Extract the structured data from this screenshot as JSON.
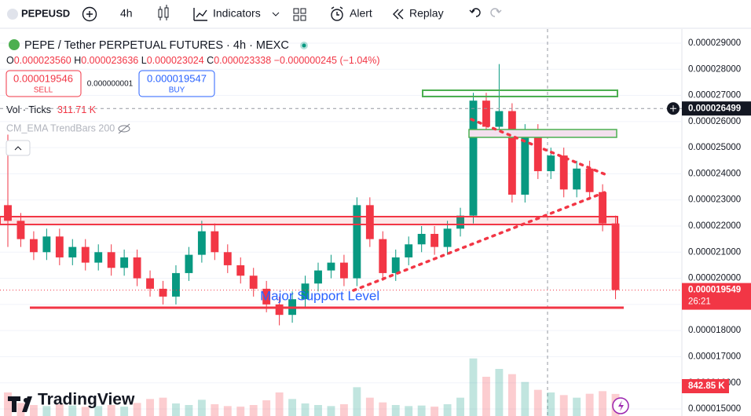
{
  "toolbar": {
    "symbol": "PEPEUSD",
    "interval": "4h",
    "indicators": "Indicators",
    "alert": "Alert",
    "replay": "Replay"
  },
  "legend": {
    "title": "PEPE / Tether PERPETUAL FUTURES · 4h · MEXC",
    "o_key": "O",
    "o": "0.000023560",
    "h_key": "H",
    "h": "0.000023636",
    "l_key": "L",
    "l": "0.000023024",
    "c_key": "C",
    "c": "0.000023338",
    "change": "−0.000000245 (−1.04%)"
  },
  "trade": {
    "sell_price": "0.000019546",
    "sell": "SELL",
    "spread": "0.000000001",
    "buy_price": "0.000019547",
    "buy": "BUY"
  },
  "volume_legend": {
    "label": "Vol · Ticks",
    "value": "311.71 K"
  },
  "indicator": "CM_EMA TrendBars 200",
  "brand": "TradingView",
  "chart_data": {
    "type": "candlestick",
    "ylim": [
      1.473e-05,
      2.945e-05
    ],
    "yticks": [
      {
        "value": 1.5e-05,
        "label": "0.000015000"
      },
      {
        "value": 1.6e-05,
        "label": "0.000016000"
      },
      {
        "value": 1.7e-05,
        "label": "0.000017000"
      },
      {
        "value": 1.8e-05,
        "label": "0.000018000"
      },
      {
        "value": 1.9e-05,
        "label": "0.000019000"
      },
      {
        "value": 2e-05,
        "label": "0.000020000"
      },
      {
        "value": 2.1e-05,
        "label": "0.000021000"
      },
      {
        "value": 2.2e-05,
        "label": "0.000022000"
      },
      {
        "value": 2.3e-05,
        "label": "0.000023000"
      },
      {
        "value": 2.4e-05,
        "label": "0.000024000"
      },
      {
        "value": 2.5e-05,
        "label": "0.000025000"
      },
      {
        "value": 2.6e-05,
        "label": "0.000026000"
      },
      {
        "value": 2.7e-05,
        "label": "0.000027000"
      },
      {
        "value": 2.8e-05,
        "label": "0.000028000"
      },
      {
        "value": 2.9e-05,
        "label": "0.000029000"
      }
    ],
    "up_color": "#089981",
    "down_color": "#f23645",
    "open": [
      2.28e-05,
      2.22e-05,
      2.15e-05,
      2.1e-05,
      2.16e-05,
      2.08e-05,
      2.12e-05,
      2.06e-05,
      2.1e-05,
      2.04e-05,
      2.08e-05,
      2e-05,
      1.96e-05,
      1.93e-05,
      2.02e-05,
      2.09e-05,
      2.18e-05,
      2.1e-05,
      2.05e-05,
      2.01e-05,
      1.96e-05,
      1.9e-05,
      1.86e-05,
      1.92e-05,
      1.98e-05,
      2.03e-05,
      2.06e-05,
      2e-05,
      2.28e-05,
      2.15e-05,
      2.02e-05,
      2.08e-05,
      2.13e-05,
      2.17e-05,
      2.12e-05,
      2.19e-05,
      2.24e-05,
      2.68e-05,
      2.58e-05,
      2.64e-05,
      2.32e-05,
      2.56e-05,
      2.41e-05,
      2.47e-05,
      2.34e-05,
      2.42e-05,
      2.33e-05,
      2.21e-05
    ],
    "high": [
      2.55e-05,
      2.25e-05,
      2.18e-05,
      2.19e-05,
      2.19e-05,
      2.15e-05,
      2.15e-05,
      2.13e-05,
      2.13e-05,
      2.11e-05,
      2.11e-05,
      2.03e-05,
      1.99e-05,
      2.05e-05,
      2.12e-05,
      2.22e-05,
      2.21e-05,
      2.13e-05,
      2.08e-05,
      2.04e-05,
      1.99e-05,
      1.93e-05,
      1.95e-05,
      2.01e-05,
      2.06e-05,
      2.09e-05,
      2.09e-05,
      2.31e-05,
      2.31e-05,
      2.18e-05,
      2.11e-05,
      2.16e-05,
      2.2e-05,
      2.2e-05,
      2.22e-05,
      2.27e-05,
      2.71e-05,
      2.71e-05,
      2.82e-05,
      2.67e-05,
      2.59e-05,
      2.59e-05,
      2.5e-05,
      2.5e-05,
      2.45e-05,
      2.45e-05,
      2.36e-05,
      2.24e-05
    ],
    "low": [
      2.12e-05,
      2.12e-05,
      2.07e-05,
      2.07e-05,
      2.05e-05,
      2.05e-05,
      2.03e-05,
      2.03e-05,
      2.01e-05,
      2.01e-05,
      1.97e-05,
      1.93e-05,
      1.9e-05,
      1.9e-05,
      1.99e-05,
      2.06e-05,
      2.07e-05,
      2.02e-05,
      1.98e-05,
      1.93e-05,
      1.87e-05,
      1.82e-05,
      1.83e-05,
      1.89e-05,
      1.95e-05,
      2e-05,
      1.97e-05,
      1.97e-05,
      2.12e-05,
      1.99e-05,
      1.99e-05,
      2.05e-05,
      2.1e-05,
      2.09e-05,
      2.09e-05,
      2.16e-05,
      2.21e-05,
      2.55e-05,
      2.55e-05,
      2.29e-05,
      2.29e-05,
      2.38e-05,
      2.38e-05,
      2.31e-05,
      2.31e-05,
      2.3e-05,
      2.18e-05,
      1.92e-05
    ],
    "close": [
      2.22e-05,
      2.15e-05,
      2.1e-05,
      2.16e-05,
      2.08e-05,
      2.12e-05,
      2.06e-05,
      2.1e-05,
      2.04e-05,
      2.08e-05,
      2e-05,
      1.96e-05,
      1.93e-05,
      2.02e-05,
      2.09e-05,
      2.18e-05,
      2.1e-05,
      2.05e-05,
      2.01e-05,
      1.96e-05,
      1.9e-05,
      1.86e-05,
      1.92e-05,
      1.98e-05,
      2.03e-05,
      2.06e-05,
      2e-05,
      2.28e-05,
      2.15e-05,
      2.02e-05,
      2.08e-05,
      2.13e-05,
      2.17e-05,
      2.12e-05,
      2.19e-05,
      2.24e-05,
      2.68e-05,
      2.58e-05,
      2.64e-05,
      2.32e-05,
      2.56e-05,
      2.41e-05,
      2.47e-05,
      2.34e-05,
      2.42e-05,
      2.33e-05,
      2.21e-05,
      1.955e-05
    ],
    "volume": [
      900,
      500,
      420,
      380,
      450,
      400,
      350,
      380,
      420,
      360,
      500,
      650,
      700,
      480,
      420,
      620,
      450,
      380,
      360,
      420,
      600,
      900,
      650,
      480,
      420,
      380,
      450,
      1100,
      700,
      520,
      420,
      380,
      400,
      360,
      450,
      700,
      2200,
      1500,
      1800,
      1600,
      1300,
      1000,
      900,
      800,
      700,
      850,
      950,
      842.85
    ],
    "vlim": [
      0,
      3000
    ],
    "annotation": "Major Support Level",
    "crosshair": {
      "value": 2.6499e-05,
      "label": "0.000026499"
    },
    "last_price": {
      "value": 1.9549e-05,
      "label": "0.000019549"
    },
    "countdown": "26:21",
    "volume_label": "842.85 K"
  }
}
